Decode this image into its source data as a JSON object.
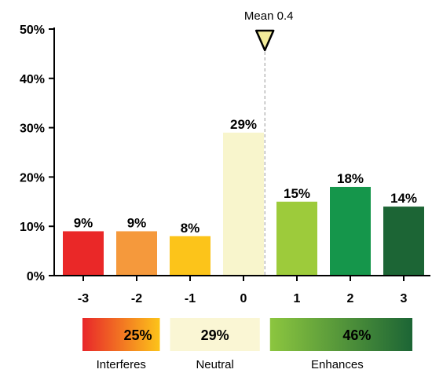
{
  "chart_data": {
    "type": "bar",
    "categories": [
      "-3",
      "-2",
      "-1",
      "0",
      "1",
      "2",
      "3"
    ],
    "values": [
      9,
      9,
      8,
      29,
      15,
      18,
      14
    ],
    "value_labels": [
      "9%",
      "9%",
      "8%",
      "29%",
      "15%",
      "18%",
      "14%"
    ],
    "colors": [
      "#ea2828",
      "#f5993c",
      "#fcc41a",
      "#f8f5cc",
      "#9dcb3b",
      "#15964b",
      "#1c6535"
    ],
    "ylim": [
      0,
      50
    ],
    "yticks": [
      0,
      10,
      20,
      30,
      40,
      50
    ],
    "ytick_labels": [
      "0%",
      "10%",
      "20%",
      "30%",
      "40%",
      "50%"
    ],
    "grid": false,
    "mean": {
      "value": 0.4,
      "label": "Mean 0.4"
    },
    "summary": [
      {
        "name": "Interferes",
        "value": 25,
        "label": "25%",
        "gradient": [
          "#e8262a",
          "#fcc41a"
        ]
      },
      {
        "name": "Neutral",
        "value": 29,
        "label": "29%",
        "gradient": [
          "#faf6d4",
          "#faf6d4"
        ]
      },
      {
        "name": "Enhances",
        "value": 46,
        "label": "46%",
        "gradient": [
          "#8cc63f",
          "#1c6535"
        ]
      }
    ]
  }
}
